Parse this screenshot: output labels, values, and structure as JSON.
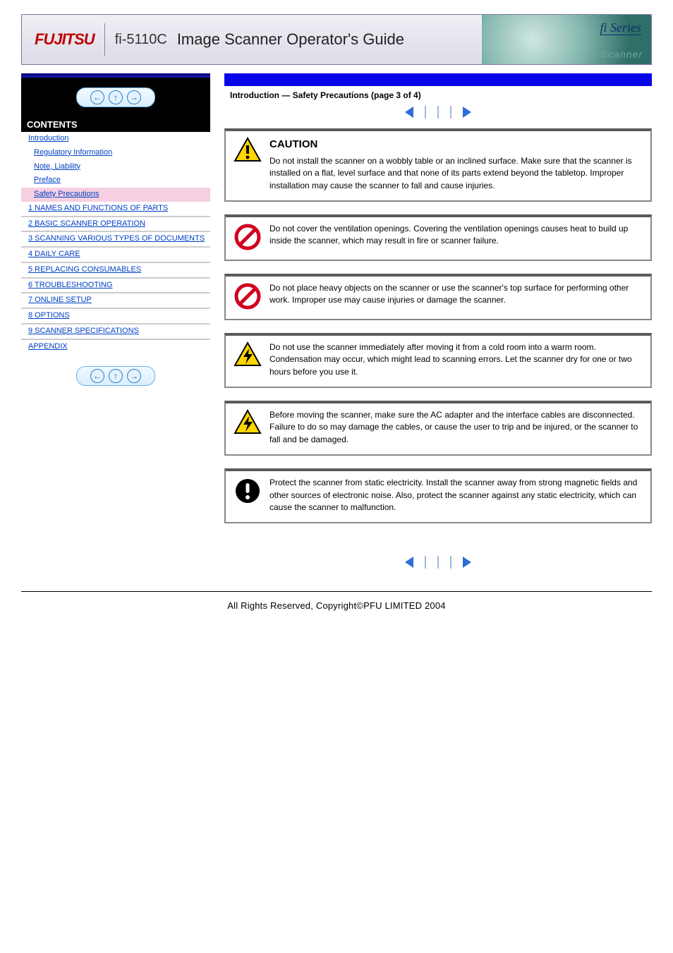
{
  "header": {
    "logo_text": "FUJITSU",
    "model": "fi-5110C",
    "title": "Image Scanner Operator's Guide",
    "series_label": "fi Series",
    "scanner_word": "Scanner",
    "logo_color": "#c00000",
    "series_color": "#0a2f64"
  },
  "colors": {
    "blue_bar": "#0806e8",
    "link": "#0041c4",
    "active_bg": "#f6cfe0",
    "triangle": "#2b6fd6",
    "border_gray": "#5a5a5a",
    "prohibit_red": "#d1001f",
    "caution_yellow": "#ffd400",
    "caution_border": "#000000"
  },
  "sidebar": {
    "contents_heading": "CONTENTS",
    "introduction_label": "Introduction",
    "regulatory_label": "Regulatory Information",
    "note_liability_label": "Note, Liability",
    "preface_label": "Preface",
    "safety_precautions_label": "Safety Precautions",
    "chapters": [
      "1 NAMES AND FUNCTIONS OF PARTS",
      "2 BASIC SCANNER OPERATION",
      "3 SCANNING VARIOUS TYPES OF DOCUMENTS",
      "4 DAILY CARE",
      "5 REPLACING CONSUMABLES",
      "6 TROUBLESHOOTING",
      "7 ONLINE SETUP",
      "8 OPTIONS",
      "9 SCANNER SPECIFICATIONS"
    ],
    "appendix_label": "APPENDIX"
  },
  "content": {
    "section_heading": "Introduction — Safety Precautions (page 3 of 4)",
    "caution_heading": "CAUTION",
    "boxes": [
      {
        "icon": "caution-triangle",
        "text": "Do not install the scanner on a wobbly table or an inclined surface. Make sure that the scanner is installed on a flat, level surface and that none of its parts extend beyond the tabletop. Improper installation may cause the scanner to fall and cause injuries."
      },
      {
        "icon": "prohibit-circle",
        "text": "Do not cover the ventilation openings. Covering the ventilation openings causes heat to build up inside the scanner, which may result in fire or scanner failure."
      },
      {
        "icon": "prohibit-circle",
        "text": "Do not place heavy objects on the scanner or use the scanner's top surface for performing other work. Improper use may cause injuries or damage the scanner."
      },
      {
        "icon": "electric-triangle",
        "text": "Do not use the scanner immediately after moving it from a cold room into a warm room. Condensation may occur, which might lead to scanning errors. Let the scanner dry for one or two hours before you use it."
      },
      {
        "icon": "electric-triangle",
        "text": "Before moving the scanner, make sure the AC adapter and the interface cables are disconnected. Failure to do so may damage the cables, or cause the user to trip and be injured, or the scanner to fall and be damaged."
      },
      {
        "icon": "mandatory-circle",
        "text": "Protect the scanner from static electricity. Install the scanner away from strong magnetic fields and other sources of electronic noise. Also, protect the scanner against any static electricity, which can cause the scanner to malfunction."
      }
    ]
  },
  "footer": {
    "text": "All Rights Reserved, Copyright©PFU LIMITED 2004"
  }
}
